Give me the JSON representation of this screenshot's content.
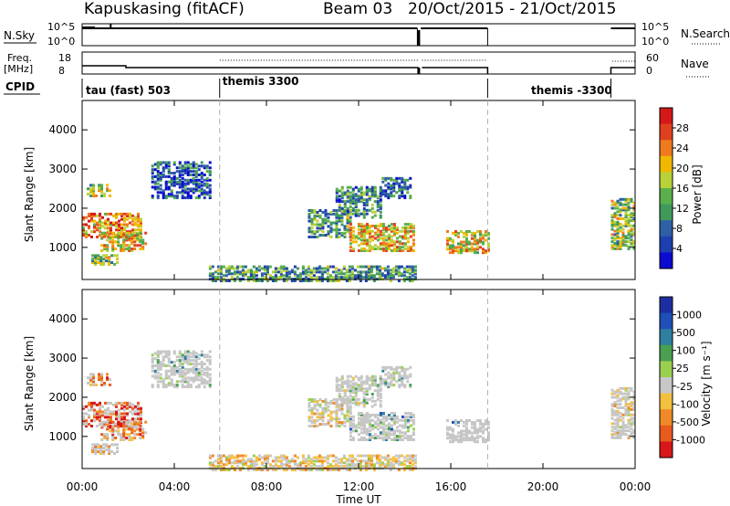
{
  "header": {
    "station": "Kapuskasing (fitACF)",
    "beam": "Beam 03",
    "date_range": "20/Oct/2015 - 21/Oct/2015"
  },
  "summary": {
    "nsky_label": "N.Sky",
    "nsearch_label": "N.Search",
    "freq_label_1": "Freq.",
    "freq_label_2": "[MHz]",
    "nave_label": "Nave",
    "cpid_label": "CPID",
    "noise_ticks": [
      "10^5",
      "10^0"
    ],
    "freq_ticks": [
      "18",
      "8"
    ],
    "nave_ticks": [
      "60",
      "0"
    ],
    "cpid_segments": [
      {
        "label": "tau (fast) 503",
        "start_h": 0.0
      },
      {
        "label": "themis 3300",
        "start_h": 5.97
      },
      {
        "label": "themis -3300",
        "start_h": 17.6
      }
    ]
  },
  "colors": {
    "power_scale": [
      "#0a0ad0",
      "#1e3fb0",
      "#2f5fa6",
      "#3f9a5a",
      "#5ab04a",
      "#b8d23a",
      "#f0b800",
      "#f07a1e",
      "#e0401e",
      "#d41818"
    ],
    "velocity_scale": [
      "#1d2fa0",
      "#1f4fb8",
      "#2f7fa0",
      "#4aa050",
      "#9ad050",
      "#c8c8c8",
      "#f4c040",
      "#f08a28",
      "#e85a1e",
      "#d81818"
    ],
    "gate_grey": "#c6c6c6"
  },
  "chart_data": {
    "type": "heatmap",
    "x_axis": {
      "label": "Time UT",
      "tick_labels": [
        "00:00",
        "04:00",
        "08:00",
        "12:00",
        "16:00",
        "20:00",
        "00:00"
      ],
      "range_hours": [
        0,
        24
      ],
      "dashed_lines_h": [
        5.97,
        17.6
      ]
    },
    "panels": [
      {
        "name": "Power",
        "ylabel": "Slant Range [km]",
        "y_ticks": [
          "1000",
          "2000",
          "3000",
          "4000"
        ],
        "y_range_km": [
          180,
          4750
        ],
        "colorbar_label": "Power [dB]",
        "colorbar_ticks": [
          "4",
          "8",
          "12",
          "16",
          "20",
          "24",
          "28"
        ],
        "colorbar_range": [
          0,
          30
        ]
      },
      {
        "name": "Velocity",
        "ylabel": "Slant Range [km]",
        "y_ticks": [
          "1000",
          "2000",
          "3000",
          "4000"
        ],
        "y_range_km": [
          180,
          4750
        ],
        "colorbar_label": "Velocity [m s⁻¹]",
        "colorbar_ticks": [
          "1000",
          "500",
          "100",
          "25",
          "-25",
          "-100",
          "-500",
          "-1000"
        ]
      }
    ],
    "scatter_regions": [
      {
        "t0": 0.0,
        "t1": 2.5,
        "r0": 1300,
        "r1": 1900,
        "pow": 0.75,
        "vel": 0.9,
        "vel_grey": 0.45
      },
      {
        "t0": 0.8,
        "t1": 2.8,
        "r0": 950,
        "r1": 1400,
        "pow": 0.65,
        "vel": 0.82,
        "vel_grey": 0.3
      },
      {
        "t0": 0.4,
        "t1": 1.5,
        "r0": 600,
        "r1": 850,
        "pow": 0.5,
        "vel": 0.7,
        "vel_grey": 0.6
      },
      {
        "t0": 0.2,
        "t1": 1.2,
        "r0": 2350,
        "r1": 2650,
        "pow": 0.55,
        "vel": 0.8,
        "vel_grey": 0.5
      },
      {
        "t0": 3.0,
        "t1": 5.6,
        "r0": 2300,
        "r1": 3200,
        "pow": 0.15,
        "vel": 0.4,
        "vel_grey": 0.9
      },
      {
        "t0": 9.8,
        "t1": 11.6,
        "r0": 1300,
        "r1": 2000,
        "pow": 0.35,
        "vel": 0.6,
        "vel_grey": 0.5
      },
      {
        "t0": 11.6,
        "t1": 14.4,
        "r0": 950,
        "r1": 1650,
        "pow": 0.65,
        "vel": 0.3,
        "vel_grey": 0.85
      },
      {
        "t0": 11.0,
        "t1": 13.0,
        "r0": 1800,
        "r1": 2600,
        "pow": 0.3,
        "vel": 0.5,
        "vel_grey": 0.7
      },
      {
        "t0": 13.0,
        "t1": 14.2,
        "r0": 2300,
        "r1": 2800,
        "pow": 0.2,
        "vel": 0.4,
        "vel_grey": 0.8
      },
      {
        "t0": 15.8,
        "t1": 17.6,
        "r0": 900,
        "r1": 1450,
        "pow": 0.62,
        "vel": 0.3,
        "vel_grey": 0.95
      },
      {
        "t0": 22.95,
        "t1": 24.0,
        "r0": 1000,
        "r1": 2300,
        "pow": 0.5,
        "vel": 0.6,
        "vel_grey": 0.7
      },
      {
        "t0": 5.5,
        "t1": 14.5,
        "r0": 180,
        "r1": 550,
        "pow": 0.35,
        "vel": 0.62,
        "vel_grey": 0.15
      }
    ]
  }
}
